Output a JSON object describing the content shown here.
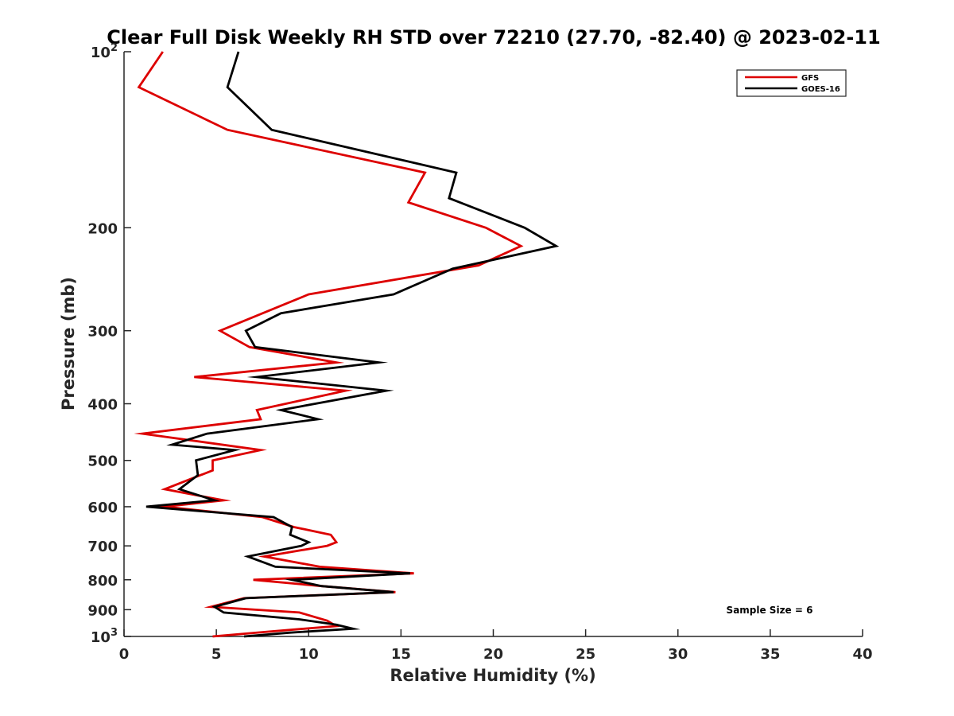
{
  "chart_data": {
    "type": "line",
    "title": "Clear Full Disk Weekly RH STD over 72210 (27.70, -82.40) @ 2023-02-11",
    "xlabel": "Relative Humidity (%)",
    "ylabel": "Pressure (mb)",
    "xlim": [
      0,
      40
    ],
    "ylim": [
      1000,
      100
    ],
    "y_scale": "log",
    "y_reversed": true,
    "grid": false,
    "legend_position": "top-right",
    "x_ticks": [
      0,
      5,
      10,
      15,
      20,
      25,
      30,
      35,
      40
    ],
    "y_ticks": [
      {
        "value": 100,
        "base": "10",
        "exp": "2"
      },
      {
        "value": 200,
        "label": "200"
      },
      {
        "value": 300,
        "label": "300"
      },
      {
        "value": 400,
        "label": "400"
      },
      {
        "value": 500,
        "label": "500"
      },
      {
        "value": 600,
        "label": "600"
      },
      {
        "value": 700,
        "label": "700"
      },
      {
        "value": 800,
        "label": "800"
      },
      {
        "value": 900,
        "label": "900"
      },
      {
        "value": 1000,
        "base": "10",
        "exp": "3"
      }
    ],
    "annotation": "Sample Size = 6",
    "series": [
      {
        "name": "GFS",
        "color": "#dd0000",
        "points": [
          [
            2.1,
            100
          ],
          [
            0.8,
            115
          ],
          [
            5.6,
            136
          ],
          [
            16.3,
            161
          ],
          [
            15.4,
            181
          ],
          [
            19.6,
            200
          ],
          [
            21.5,
            215
          ],
          [
            19.2,
            232
          ],
          [
            10.0,
            260
          ],
          [
            5.2,
            300
          ],
          [
            6.8,
            320
          ],
          [
            11.5,
            340
          ],
          [
            3.8,
            360
          ],
          [
            12.0,
            380
          ],
          [
            7.2,
            410
          ],
          [
            7.4,
            425
          ],
          [
            1.0,
            450
          ],
          [
            7.4,
            480
          ],
          [
            4.8,
            500
          ],
          [
            4.8,
            520
          ],
          [
            2.2,
            560
          ],
          [
            5.4,
            585
          ],
          [
            2.2,
            600
          ],
          [
            7.5,
            625
          ],
          [
            9.2,
            650
          ],
          [
            11.2,
            670
          ],
          [
            11.5,
            690
          ],
          [
            11.0,
            700
          ],
          [
            7.6,
            730
          ],
          [
            10.6,
            760
          ],
          [
            15.7,
            780
          ],
          [
            7.0,
            800
          ],
          [
            10.7,
            820
          ],
          [
            14.7,
            840
          ],
          [
            6.5,
            860
          ],
          [
            4.7,
            890
          ],
          [
            9.5,
            910
          ],
          [
            11.0,
            940
          ],
          [
            11.5,
            960
          ],
          [
            8.0,
            980
          ],
          [
            4.8,
            1000
          ]
        ]
      },
      {
        "name": "GOES-16",
        "color": "#000000",
        "points": [
          [
            6.2,
            100
          ],
          [
            5.6,
            115
          ],
          [
            8.0,
            136
          ],
          [
            18.0,
            161
          ],
          [
            17.6,
            178
          ],
          [
            21.7,
            200
          ],
          [
            23.4,
            215
          ],
          [
            17.8,
            235
          ],
          [
            14.6,
            260
          ],
          [
            8.5,
            280
          ],
          [
            6.6,
            300
          ],
          [
            7.1,
            320
          ],
          [
            13.8,
            340
          ],
          [
            7.2,
            360
          ],
          [
            14.2,
            380
          ],
          [
            8.5,
            410
          ],
          [
            10.5,
            425
          ],
          [
            4.5,
            450
          ],
          [
            2.6,
            470
          ],
          [
            6.0,
            480
          ],
          [
            3.9,
            500
          ],
          [
            4.0,
            530
          ],
          [
            3.0,
            560
          ],
          [
            4.9,
            585
          ],
          [
            1.2,
            600
          ],
          [
            8.1,
            625
          ],
          [
            9.1,
            650
          ],
          [
            9.0,
            670
          ],
          [
            10.0,
            690
          ],
          [
            9.6,
            700
          ],
          [
            6.7,
            730
          ],
          [
            8.2,
            760
          ],
          [
            15.5,
            780
          ],
          [
            9.1,
            800
          ],
          [
            10.7,
            820
          ],
          [
            14.6,
            840
          ],
          [
            6.6,
            860
          ],
          [
            4.9,
            890
          ],
          [
            5.4,
            910
          ],
          [
            9.5,
            935
          ],
          [
            11.5,
            955
          ],
          [
            12.4,
            970
          ],
          [
            9.0,
            985
          ],
          [
            6.5,
            1000
          ]
        ]
      }
    ]
  }
}
